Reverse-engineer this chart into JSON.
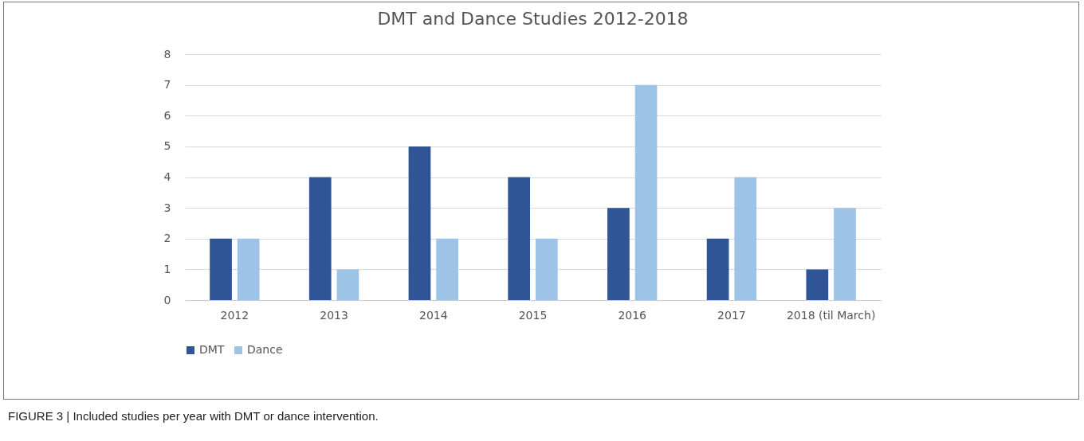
{
  "chart_data": {
    "type": "bar",
    "title": "DMT and Dance Studies 2012-2018",
    "categories": [
      "2012",
      "2013",
      "2014",
      "2015",
      "2016",
      "2017",
      "2018 (til March)"
    ],
    "series": [
      {
        "name": "DMT",
        "color": "#2f5597",
        "values": [
          2,
          4,
          5,
          4,
          3,
          2,
          1
        ]
      },
      {
        "name": "Dance",
        "color": "#9dc3e6",
        "values": [
          2,
          1,
          2,
          2,
          7,
          4,
          3
        ]
      }
    ],
    "ylim": [
      0,
      8
    ],
    "yticks": [
      0,
      1,
      2,
      3,
      4,
      5,
      6,
      7,
      8
    ],
    "grid": "y",
    "legend": "bottom",
    "annotations": [
      "FIGURE 3 | Included studies per year with DMT or dance intervention."
    ]
  }
}
